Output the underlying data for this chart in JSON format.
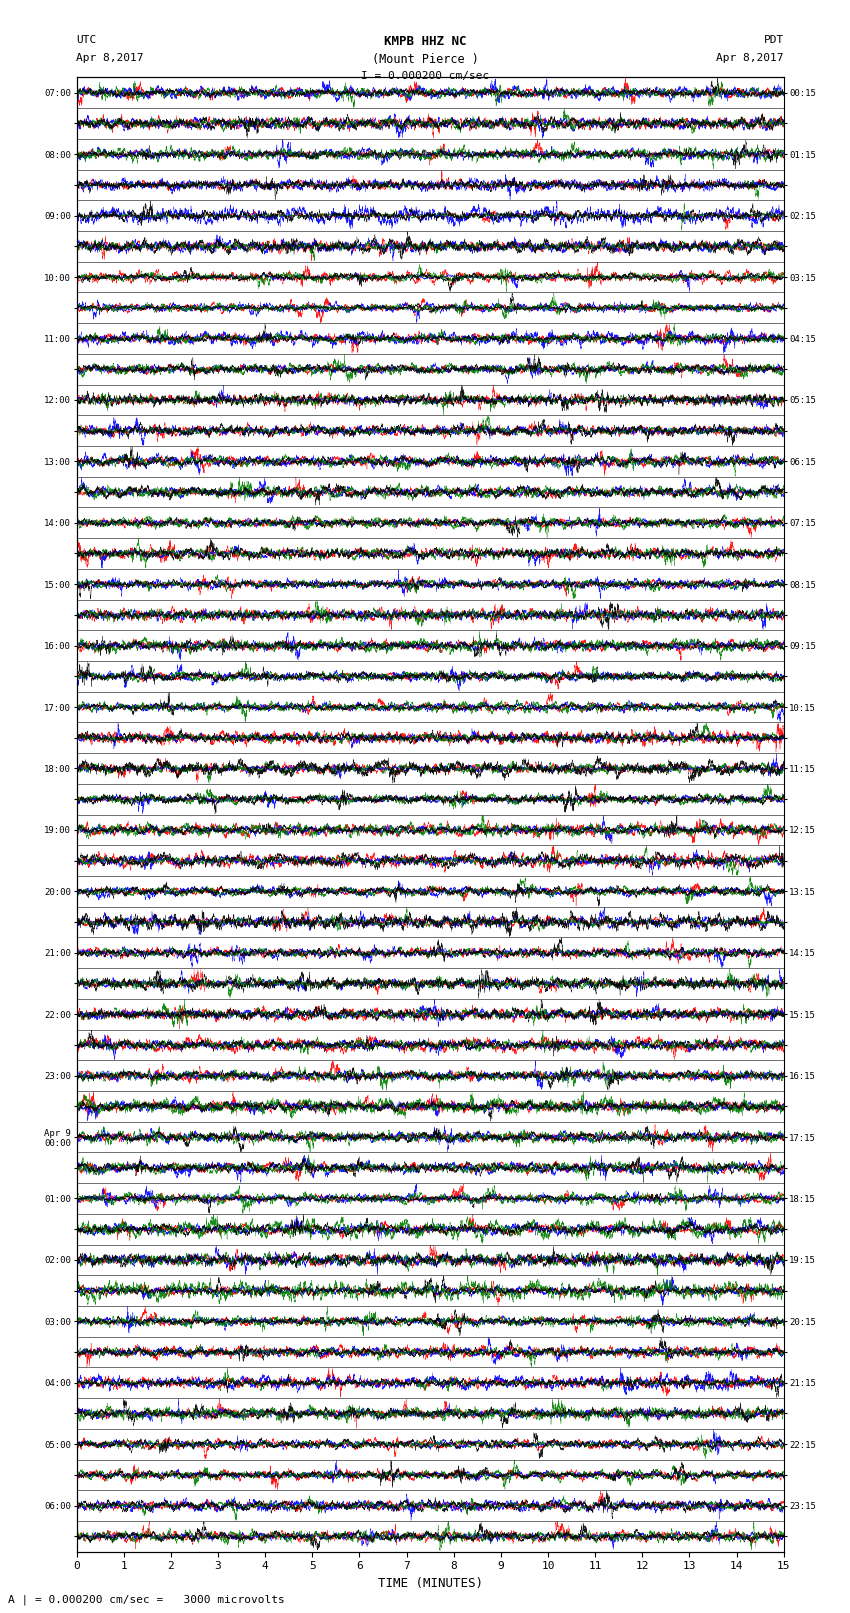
{
  "title_line1": "KMPB HHZ NC",
  "title_line2": "(Mount Pierce )",
  "scale_text": "I = 0.000200 cm/sec",
  "left_header": "UTC",
  "left_date": "Apr 8,2017",
  "right_header": "PDT",
  "right_date": "Apr 8,2017",
  "xlabel": "TIME (MINUTES)",
  "footer": "A | = 0.000200 cm/sec =   3000 microvolts",
  "x_min": 0,
  "x_max": 15,
  "x_ticks": [
    0,
    1,
    2,
    3,
    4,
    5,
    6,
    7,
    8,
    9,
    10,
    11,
    12,
    13,
    14,
    15
  ],
  "num_traces": 48,
  "colors": [
    "red",
    "blue",
    "green",
    "black"
  ],
  "background": "white",
  "left_times": [
    "07:00",
    "",
    "08:00",
    "",
    "09:00",
    "",
    "10:00",
    "",
    "11:00",
    "",
    "12:00",
    "",
    "13:00",
    "",
    "14:00",
    "",
    "15:00",
    "",
    "16:00",
    "",
    "17:00",
    "",
    "18:00",
    "",
    "19:00",
    "",
    "20:00",
    "",
    "21:00",
    "",
    "22:00",
    "",
    "23:00",
    "",
    "Apr 9\n00:00",
    "",
    "01:00",
    "",
    "02:00",
    "",
    "03:00",
    "",
    "04:00",
    "",
    "05:00",
    "",
    "06:00",
    ""
  ],
  "right_times": [
    "00:15",
    "",
    "01:15",
    "",
    "02:15",
    "",
    "03:15",
    "",
    "04:15",
    "",
    "05:15",
    "",
    "06:15",
    "",
    "07:15",
    "",
    "08:15",
    "",
    "09:15",
    "",
    "10:15",
    "",
    "11:15",
    "",
    "12:15",
    "",
    "13:15",
    "",
    "14:15",
    "",
    "15:15",
    "",
    "16:15",
    "",
    "17:15",
    "",
    "18:15",
    "",
    "19:15",
    "",
    "20:15",
    "",
    "21:15",
    "",
    "22:15",
    "",
    "23:15",
    ""
  ]
}
